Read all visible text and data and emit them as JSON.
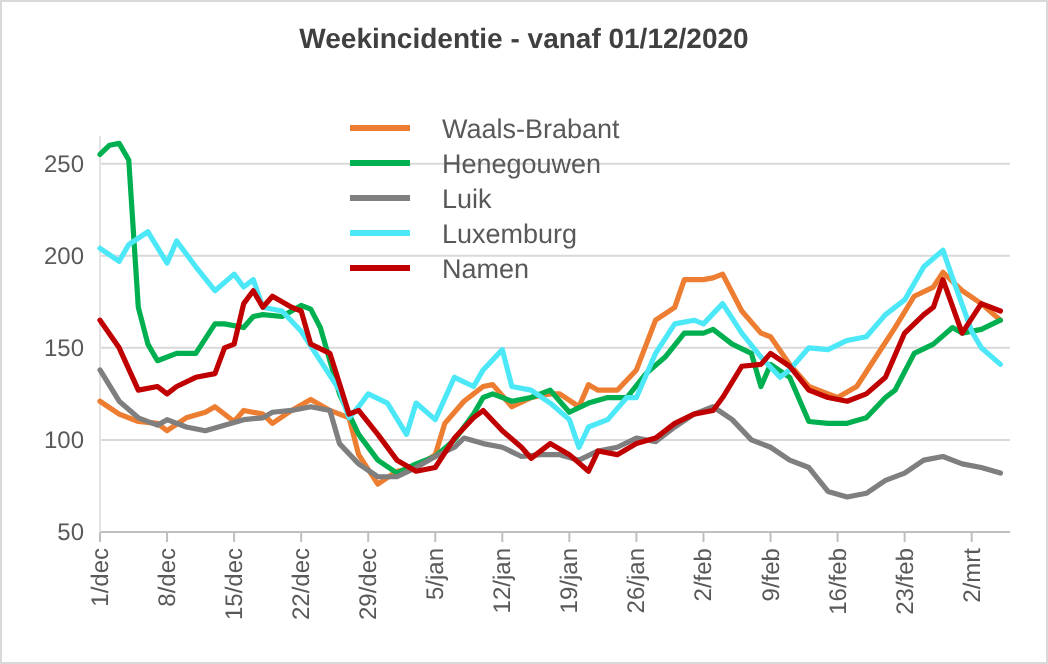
{
  "chart_data": {
    "type": "line",
    "title": "Weekincidentie  - vanaf 01/12/2020",
    "xlim": [
      "2020-12-01",
      "2021-03-06"
    ],
    "xticks": [
      {
        "value": "2020-12-01",
        "label": "1/dec"
      },
      {
        "value": "2020-12-08",
        "label": "8/dec"
      },
      {
        "value": "2020-12-15",
        "label": "15/dec"
      },
      {
        "value": "2020-12-22",
        "label": "22/dec"
      },
      {
        "value": "2020-12-29",
        "label": "29/dec"
      },
      {
        "value": "2021-01-05",
        "label": "5/jan"
      },
      {
        "value": "2021-01-12",
        "label": "12/jan"
      },
      {
        "value": "2021-01-19",
        "label": "19/jan"
      },
      {
        "value": "2021-01-26",
        "label": "26/jan"
      },
      {
        "value": "2021-02-02",
        "label": "2/feb"
      },
      {
        "value": "2021-02-09",
        "label": "9/feb"
      },
      {
        "value": "2021-02-16",
        "label": "16/feb"
      },
      {
        "value": "2021-02-23",
        "label": "23/feb"
      },
      {
        "value": "2021-03-02",
        "label": "2/mrt"
      }
    ],
    "ylim": [
      50,
      265
    ],
    "yticks": [
      50,
      100,
      150,
      200,
      250
    ],
    "grid": "y",
    "legend": "top",
    "line_style": "solid",
    "marker": "none",
    "series": [
      {
        "name": "Waals-Brabant",
        "color": "#ed7d31",
        "x": [
          "2020-12-01",
          "2020-12-03",
          "2020-12-05",
          "2020-12-07",
          "2020-12-08",
          "2020-12-10",
          "2020-12-12",
          "2020-12-13",
          "2020-12-15",
          "2020-12-16",
          "2020-12-18",
          "2020-12-19",
          "2020-12-21",
          "2020-12-23",
          "2020-12-25",
          "2020-12-27",
          "2020-12-28",
          "2020-12-30",
          "2021-01-01",
          "2021-01-03",
          "2021-01-05",
          "2021-01-06",
          "2021-01-08",
          "2021-01-10",
          "2021-01-11",
          "2021-01-13",
          "2021-01-15",
          "2021-01-17",
          "2021-01-18",
          "2021-01-20",
          "2021-01-21",
          "2021-01-22",
          "2021-01-24",
          "2021-01-26",
          "2021-01-28",
          "2021-01-30",
          "2021-01-31",
          "2021-02-02",
          "2021-02-03",
          "2021-02-04",
          "2021-02-06",
          "2021-02-08",
          "2021-02-09",
          "2021-02-11",
          "2021-02-13",
          "2021-02-15",
          "2021-02-16",
          "2021-02-18",
          "2021-02-20",
          "2021-02-22",
          "2021-02-24",
          "2021-02-26",
          "2021-02-27",
          "2021-03-01",
          "2021-03-03",
          "2021-03-05"
        ],
        "values": [
          121,
          114,
          110,
          109,
          105,
          112,
          115,
          118,
          110,
          116,
          114,
          109,
          116,
          122,
          116,
          112,
          92,
          76,
          83,
          85,
          92,
          109,
          121,
          129,
          130,
          118,
          123,
          125,
          125,
          118,
          130,
          127,
          127,
          138,
          165,
          172,
          187,
          187,
          188,
          190,
          170,
          158,
          156,
          141,
          129,
          125,
          123,
          129,
          145,
          161,
          178,
          183,
          191,
          181,
          174,
          165
        ]
      },
      {
        "name": "Henegouwen",
        "color": "#00b050",
        "x": [
          "2020-12-01",
          "2020-12-02",
          "2020-12-03",
          "2020-12-04",
          "2020-12-05",
          "2020-12-06",
          "2020-12-07",
          "2020-12-09",
          "2020-12-11",
          "2020-12-13",
          "2020-12-14",
          "2020-12-16",
          "2020-12-17",
          "2020-12-18",
          "2020-12-20",
          "2020-12-22",
          "2020-12-23",
          "2020-12-24",
          "2020-12-26",
          "2020-12-28",
          "2020-12-30",
          "2021-01-01",
          "2021-01-03",
          "2021-01-05",
          "2021-01-07",
          "2021-01-09",
          "2021-01-10",
          "2021-01-11",
          "2021-01-13",
          "2021-01-15",
          "2021-01-17",
          "2021-01-19",
          "2021-01-21",
          "2021-01-23",
          "2021-01-25",
          "2021-01-27",
          "2021-01-29",
          "2021-01-31",
          "2021-02-02",
          "2021-02-03",
          "2021-02-05",
          "2021-02-07",
          "2021-02-08",
          "2021-02-09",
          "2021-02-11",
          "2021-02-13",
          "2021-02-15",
          "2021-02-17",
          "2021-02-19",
          "2021-02-21",
          "2021-02-22",
          "2021-02-24",
          "2021-02-26",
          "2021-02-28",
          "2021-03-01",
          "2021-03-03",
          "2021-03-05"
        ],
        "values": [
          255,
          260,
          261,
          252,
          172,
          152,
          143,
          147,
          147,
          163,
          163,
          161,
          167,
          168,
          167,
          173,
          171,
          161,
          125,
          103,
          89,
          82,
          87,
          91,
          100,
          114,
          123,
          125,
          121,
          123,
          127,
          115,
          120,
          123,
          123,
          136,
          145,
          158,
          158,
          160,
          152,
          147,
          129,
          141,
          134,
          110,
          109,
          109,
          112,
          123,
          127,
          147,
          152,
          161,
          158,
          160,
          165
        ]
      },
      {
        "name": "Luik",
        "color": "#7f7f7f",
        "x": [
          "2020-12-01",
          "2020-12-03",
          "2020-12-05",
          "2020-12-07",
          "2020-12-08",
          "2020-12-10",
          "2020-12-12",
          "2020-12-14",
          "2020-12-16",
          "2020-12-18",
          "2020-12-19",
          "2020-12-21",
          "2020-12-23",
          "2020-12-25",
          "2020-12-26",
          "2020-12-28",
          "2020-12-30",
          "2021-01-01",
          "2021-01-03",
          "2021-01-05",
          "2021-01-07",
          "2021-01-08",
          "2021-01-10",
          "2021-01-12",
          "2021-01-14",
          "2021-01-16",
          "2021-01-18",
          "2021-01-20",
          "2021-01-22",
          "2021-01-24",
          "2021-01-26",
          "2021-01-28",
          "2021-01-30",
          "2021-02-01",
          "2021-02-03",
          "2021-02-05",
          "2021-02-07",
          "2021-02-09",
          "2021-02-11",
          "2021-02-13",
          "2021-02-15",
          "2021-02-17",
          "2021-02-19",
          "2021-02-21",
          "2021-02-23",
          "2021-02-25",
          "2021-02-27",
          "2021-03-01",
          "2021-03-03",
          "2021-03-05"
        ],
        "values": [
          138,
          121,
          112,
          108,
          111,
          107,
          105,
          108,
          111,
          112,
          115,
          116,
          118,
          116,
          98,
          87,
          80,
          80,
          85,
          91,
          96,
          101,
          98,
          96,
          91,
          92,
          92,
          89,
          94,
          96,
          101,
          99,
          107,
          114,
          118,
          111,
          100,
          96,
          89,
          85,
          72,
          69,
          71,
          78,
          82,
          89,
          91,
          87,
          85,
          82
        ]
      },
      {
        "name": "Luxemburg",
        "color": "#4de8f7",
        "x": [
          "2020-12-01",
          "2020-12-03",
          "2020-12-04",
          "2020-12-06",
          "2020-12-08",
          "2020-12-09",
          "2020-12-11",
          "2020-12-13",
          "2020-12-15",
          "2020-12-16",
          "2020-12-17",
          "2020-12-18",
          "2020-12-20",
          "2020-12-22",
          "2020-12-24",
          "2020-12-26",
          "2020-12-27",
          "2020-12-28",
          "2020-12-29",
          "2020-12-31",
          "2021-01-02",
          "2021-01-03",
          "2021-01-05",
          "2021-01-07",
          "2021-01-09",
          "2021-01-10",
          "2021-01-12",
          "2021-01-13",
          "2021-01-15",
          "2021-01-17",
          "2021-01-19",
          "2021-01-20",
          "2021-01-21",
          "2021-01-23",
          "2021-01-25",
          "2021-01-26",
          "2021-01-28",
          "2021-01-30",
          "2021-02-01",
          "2021-02-02",
          "2021-02-04",
          "2021-02-06",
          "2021-02-08",
          "2021-02-10",
          "2021-02-11",
          "2021-02-13",
          "2021-02-15",
          "2021-02-17",
          "2021-02-19",
          "2021-02-21",
          "2021-02-23",
          "2021-02-25",
          "2021-02-27",
          "2021-02-28",
          "2021-03-02",
          "2021-03-03",
          "2021-03-05"
        ],
        "values": [
          204,
          197,
          206,
          213,
          196,
          208,
          194,
          181,
          190,
          183,
          187,
          172,
          170,
          159,
          143,
          127,
          112,
          118,
          125,
          120,
          103,
          120,
          111,
          134,
          129,
          138,
          149,
          129,
          127,
          120,
          111,
          96,
          107,
          111,
          123,
          123,
          147,
          163,
          165,
          163,
          174,
          158,
          145,
          134,
          138,
          150,
          149,
          154,
          156,
          168,
          176,
          194,
          203,
          188,
          159,
          150,
          141
        ]
      },
      {
        "name": "Namen",
        "color": "#c00000",
        "x": [
          "2020-12-01",
          "2020-12-03",
          "2020-12-05",
          "2020-12-07",
          "2020-12-08",
          "2020-12-09",
          "2020-12-11",
          "2020-12-13",
          "2020-12-14",
          "2020-12-15",
          "2020-12-16",
          "2020-12-17",
          "2020-12-18",
          "2020-12-19",
          "2020-12-21",
          "2020-12-22",
          "2020-12-23",
          "2020-12-25",
          "2020-12-27",
          "2020-12-28",
          "2020-12-30",
          "2021-01-01",
          "2021-01-03",
          "2021-01-05",
          "2021-01-07",
          "2021-01-09",
          "2021-01-10",
          "2021-01-12",
          "2021-01-14",
          "2021-01-15",
          "2021-01-17",
          "2021-01-19",
          "2021-01-21",
          "2021-01-22",
          "2021-01-24",
          "2021-01-26",
          "2021-01-28",
          "2021-01-30",
          "2021-02-01",
          "2021-02-03",
          "2021-02-04",
          "2021-02-06",
          "2021-02-08",
          "2021-02-09",
          "2021-02-11",
          "2021-02-13",
          "2021-02-15",
          "2021-02-17",
          "2021-02-19",
          "2021-02-21",
          "2021-02-23",
          "2021-02-25",
          "2021-02-26",
          "2021-02-27",
          "2021-03-01",
          "2021-03-03",
          "2021-03-05"
        ],
        "values": [
          165,
          150,
          127,
          129,
          125,
          129,
          134,
          136,
          150,
          152,
          174,
          181,
          172,
          178,
          172,
          170,
          152,
          147,
          114,
          116,
          103,
          89,
          83,
          85,
          101,
          112,
          116,
          105,
          96,
          90,
          98,
          92,
          83,
          94,
          92,
          98,
          101,
          109,
          114,
          116,
          123,
          140,
          141,
          147,
          140,
          127,
          123,
          121,
          125,
          134,
          158,
          168,
          172,
          187,
          158,
          174,
          170
        ]
      }
    ]
  }
}
